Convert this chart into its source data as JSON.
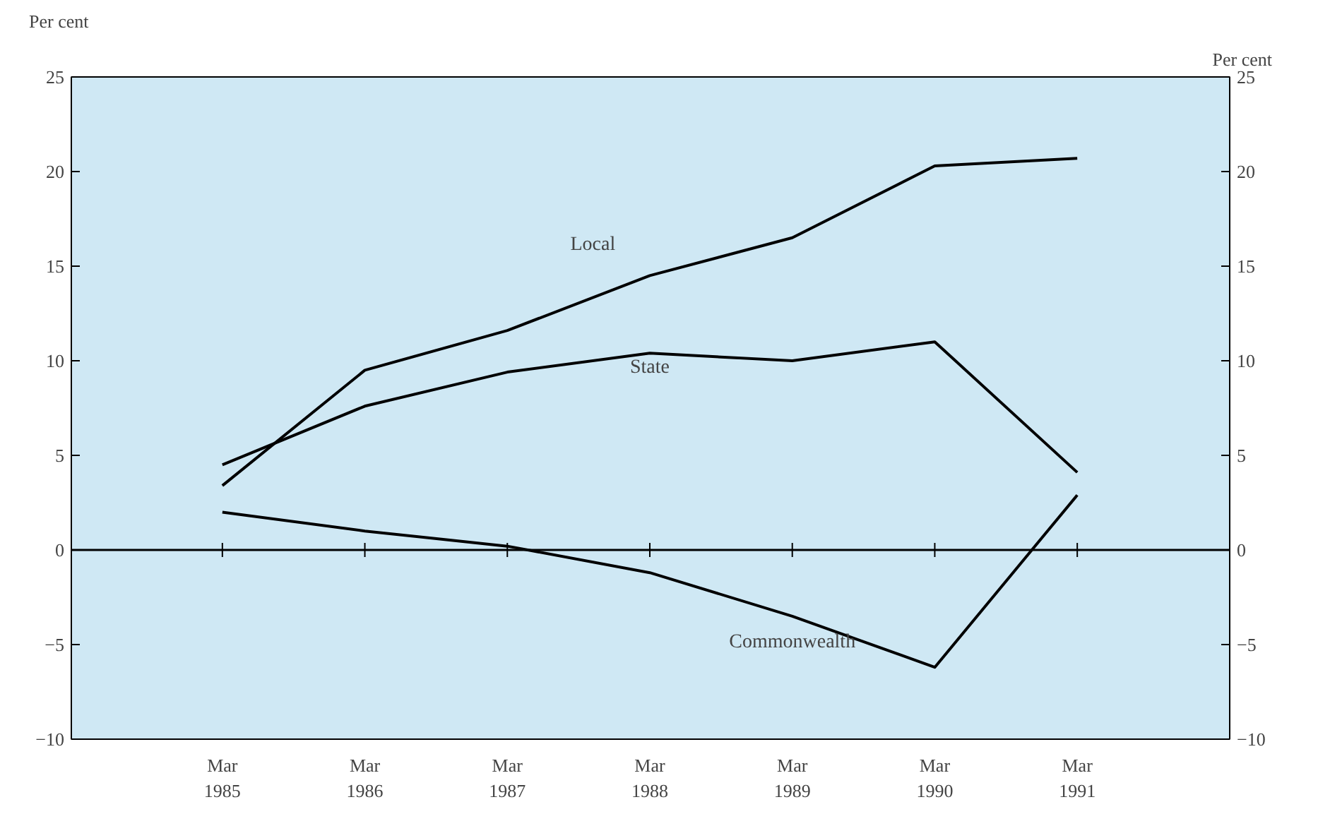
{
  "chart_data": {
    "type": "line",
    "ylabel": "Per cent",
    "y2label": "Per cent",
    "categories": [
      "Mar 1985",
      "Mar 1986",
      "Mar 1987",
      "Mar 1988",
      "Mar 1989",
      "Mar 1990",
      "Mar 1991"
    ],
    "series": [
      {
        "name": "Local",
        "color": "#000000",
        "values": [
          3.4,
          9.5,
          11.6,
          14.5,
          16.5,
          20.3,
          20.7
        ]
      },
      {
        "name": "State",
        "color": "#000000",
        "values": [
          4.5,
          7.6,
          9.4,
          10.4,
          10.0,
          11.0,
          4.1
        ]
      },
      {
        "name": "Commonwealth",
        "color": "#000000",
        "values": [
          2.0,
          1.0,
          0.2,
          -1.2,
          -3.5,
          -6.2,
          2.9
        ]
      }
    ],
    "ylim": [
      -10,
      25
    ],
    "yticks": [
      -10,
      -5,
      0,
      5,
      10,
      15,
      20,
      25
    ],
    "y2lim": [
      -10,
      25
    ],
    "y2ticks": [
      -10,
      -5,
      0,
      5,
      10,
      15,
      20,
      25
    ],
    "ref_lines": [
      {
        "axis": "y",
        "value": 0,
        "color": "#000000"
      }
    ],
    "grid": false,
    "legend": false,
    "marker": "none",
    "line_style": "solid"
  }
}
